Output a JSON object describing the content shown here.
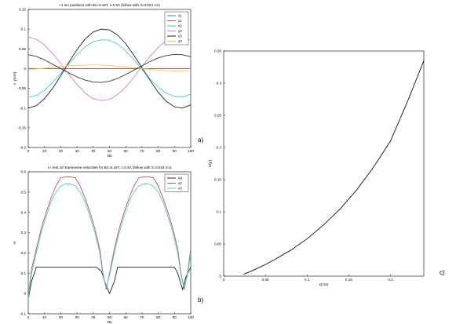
{
  "panel_labels": [
    "a)",
    "b)",
    "c)"
  ],
  "chart_data": [
    {
      "type": "line",
      "title": "+1 ion positions with Bz=0.18T, I=0.5A (follow with rl=0.024 cm)",
      "xlabel": "Ns",
      "ylabel": "x, y(cm)",
      "xlim": [
        0,
        100
      ],
      "ylim": [
        -0.2,
        0.15
      ],
      "xticks": [
        0,
        10,
        20,
        30,
        40,
        50,
        60,
        70,
        80,
        90,
        100
      ],
      "yticks": [
        -0.2,
        -0.15,
        -0.1,
        -0.05,
        0,
        0.05,
        0.1,
        0.15
      ],
      "legend_position": "top-right",
      "series": [
        {
          "name": "x1",
          "color": "#2e8ba8",
          "x": [
            0,
            5,
            10,
            15,
            20,
            25,
            30,
            35,
            40,
            45,
            50,
            55,
            60,
            65,
            70,
            75,
            80,
            85,
            90,
            95,
            100
          ],
          "values": [
            0.0,
            0.0,
            0.0,
            0.0,
            0.0,
            0.0,
            0.0,
            0.0,
            0.0,
            0.0,
            0.0,
            0.0,
            0.0,
            0.0,
            0.0,
            0.0,
            0.0,
            0.0,
            0.0,
            0.0,
            0.0
          ]
        },
        {
          "name": "y1",
          "color": "#c0504d",
          "x": [
            0,
            5,
            10,
            15,
            20,
            25,
            30,
            35,
            40,
            45,
            50,
            55,
            60,
            65,
            70,
            75,
            80,
            85,
            90,
            95,
            100
          ],
          "values": [
            0.0,
            0.0,
            0.0,
            0.0,
            0.0,
            0.0,
            0.0,
            0.0,
            0.0,
            0.0,
            0.0,
            0.0,
            0.0,
            0.0,
            0.0,
            0.0,
            0.0,
            0.0,
            0.0,
            0.0,
            0.0
          ]
        },
        {
          "name": "x2",
          "color": "#3fd0d0",
          "x": [
            0,
            5,
            10,
            15,
            20,
            25,
            30,
            35,
            40,
            45,
            50,
            55,
            60,
            65,
            70,
            75,
            80,
            85,
            90,
            95,
            100
          ],
          "values": [
            -0.073,
            -0.068,
            -0.055,
            -0.035,
            -0.012,
            0.012,
            0.035,
            0.055,
            0.068,
            0.073,
            0.072,
            0.062,
            0.045,
            0.023,
            -0.002,
            -0.026,
            -0.047,
            -0.062,
            -0.071,
            -0.072,
            -0.065
          ]
        },
        {
          "name": "y2",
          "color": "#d080d0",
          "x": [
            0,
            5,
            10,
            15,
            20,
            25,
            30,
            35,
            40,
            45,
            50,
            55,
            60,
            65,
            70,
            75,
            80,
            85,
            90,
            95,
            100
          ],
          "values": [
            0.08,
            0.074,
            0.06,
            0.038,
            0.012,
            -0.015,
            -0.04,
            -0.062,
            -0.076,
            -0.081,
            -0.078,
            -0.066,
            -0.047,
            -0.022,
            0.005,
            0.031,
            0.054,
            0.071,
            0.08,
            0.08,
            0.072
          ]
        },
        {
          "name": "x3",
          "color": "#222222",
          "x": [
            0,
            5,
            10,
            15,
            20,
            25,
            30,
            35,
            40,
            45,
            50,
            55,
            60,
            65,
            70,
            75,
            80,
            85,
            90,
            95,
            100
          ],
          "values": [
            -0.1,
            -0.094,
            -0.076,
            -0.05,
            -0.018,
            0.016,
            0.048,
            0.075,
            0.093,
            0.1,
            0.098,
            0.085,
            0.063,
            0.034,
            0.002,
            -0.03,
            -0.06,
            -0.083,
            -0.097,
            -0.1,
            -0.092
          ]
        },
        {
          "name": "y3",
          "color": "#e8d040",
          "x": [
            0,
            5,
            10,
            15,
            20,
            25,
            30,
            35,
            40,
            45,
            50,
            55,
            60,
            65,
            70,
            75,
            80,
            85,
            90,
            95,
            100
          ],
          "values": [
            -0.003,
            -0.001,
            0.001,
            0.003,
            0.005,
            0.007,
            0.008,
            0.009,
            0.009,
            0.009,
            0.008,
            0.006,
            0.004,
            0.002,
            0.0,
            -0.002,
            -0.004,
            -0.005,
            -0.006,
            -0.006,
            -0.005
          ]
        },
        {
          "name": "",
          "color": "#333333",
          "x": [
            0,
            5,
            10,
            15,
            20,
            25,
            30,
            35,
            40,
            45,
            50,
            55,
            60,
            65,
            70,
            75,
            80,
            85,
            90,
            95,
            100
          ],
          "values": [
            0.035,
            0.031,
            0.022,
            0.011,
            0.0,
            -0.011,
            -0.021,
            -0.029,
            -0.034,
            -0.035,
            -0.032,
            -0.025,
            -0.015,
            -0.004,
            0.007,
            0.018,
            0.027,
            0.033,
            0.036,
            0.035,
            0.03
          ]
        }
      ]
    },
    {
      "type": "line",
      "title": "1+ test ion transverse velocities for Bz=0.18T, I=0.5A (follow with rl=0.024 cm)",
      "xlabel": "Ns",
      "ylabel": "vr",
      "xlim": [
        0,
        100
      ],
      "ylim": [
        -0.1,
        0.6
      ],
      "xticks": [
        0,
        10,
        20,
        30,
        40,
        50,
        60,
        70,
        80,
        90,
        100
      ],
      "yticks": [
        -0.1,
        0,
        0.1,
        0.2,
        0.3,
        0.4,
        0.5,
        0.6
      ],
      "legend_position": "top-right",
      "series": [
        {
          "name": "w1",
          "color": "#222222",
          "x": [
            0,
            2,
            5,
            10,
            15,
            20,
            25,
            30,
            35,
            40,
            42,
            45,
            47,
            50,
            53,
            55,
            60,
            65,
            70,
            75,
            80,
            85,
            90,
            92,
            95,
            97,
            100
          ],
          "values": [
            -0.03,
            0.06,
            0.13,
            0.13,
            0.13,
            0.13,
            0.13,
            0.13,
            0.13,
            0.13,
            0.13,
            0.11,
            0.06,
            0.0,
            0.06,
            0.13,
            0.13,
            0.13,
            0.13,
            0.13,
            0.13,
            0.13,
            0.13,
            0.1,
            0.02,
            0.08,
            0.13
          ]
        },
        {
          "name": "x2",
          "color": "#c0504d",
          "x": [
            0,
            2,
            5,
            8,
            11,
            14,
            17,
            20,
            23,
            26,
            29,
            32,
            35,
            38,
            41,
            44,
            46,
            48,
            50,
            53,
            56,
            59,
            62,
            65,
            68,
            71,
            74,
            77,
            80,
            83,
            86,
            89,
            92,
            94,
            96,
            98,
            100
          ],
          "values": [
            -0.02,
            0.12,
            0.22,
            0.32,
            0.4,
            0.47,
            0.53,
            0.57,
            0.575,
            0.575,
            0.57,
            0.53,
            0.47,
            0.4,
            0.32,
            0.22,
            0.1,
            0.02,
            0.1,
            0.22,
            0.32,
            0.4,
            0.47,
            0.53,
            0.57,
            0.575,
            0.575,
            0.57,
            0.53,
            0.47,
            0.4,
            0.32,
            0.22,
            0.1,
            0.02,
            0.1,
            0.22
          ]
        },
        {
          "name": "x3",
          "color": "#3fd0d0",
          "x": [
            0,
            2,
            5,
            8,
            11,
            14,
            17,
            20,
            23,
            26,
            29,
            32,
            35,
            38,
            41,
            44,
            46,
            48,
            50,
            53,
            56,
            59,
            62,
            65,
            68,
            71,
            74,
            77,
            80,
            83,
            86,
            89,
            92,
            94,
            96,
            98,
            100
          ],
          "values": [
            -0.03,
            0.1,
            0.2,
            0.3,
            0.38,
            0.45,
            0.5,
            0.53,
            0.54,
            0.54,
            0.53,
            0.5,
            0.45,
            0.38,
            0.3,
            0.2,
            0.09,
            0.03,
            0.09,
            0.2,
            0.3,
            0.38,
            0.45,
            0.5,
            0.53,
            0.54,
            0.54,
            0.53,
            0.5,
            0.45,
            0.38,
            0.3,
            0.2,
            0.09,
            0.03,
            0.09,
            0.2
          ]
        }
      ]
    },
    {
      "type": "line",
      "title": "",
      "xlabel": "x(cm)",
      "ylabel": "U(y)",
      "xlim": [
        0,
        0.24
      ],
      "ylim": [
        0,
        0.35
      ],
      "xticks": [
        0,
        0.05,
        0.1,
        0.15,
        0.2
      ],
      "yticks": [
        0,
        0.05,
        0.1,
        0.15,
        0.2,
        0.25,
        0.3,
        0.35
      ],
      "series": [
        {
          "name": "",
          "color": "#111111",
          "x": [
            0.024,
            0.03,
            0.04,
            0.05,
            0.06,
            0.08,
            0.1,
            0.12,
            0.14,
            0.16,
            0.18,
            0.2,
            0.22,
            0.24
          ],
          "values": [
            0.003,
            0.006,
            0.012,
            0.018,
            0.025,
            0.04,
            0.058,
            0.08,
            0.105,
            0.135,
            0.17,
            0.21,
            0.27,
            0.335
          ]
        }
      ]
    }
  ]
}
